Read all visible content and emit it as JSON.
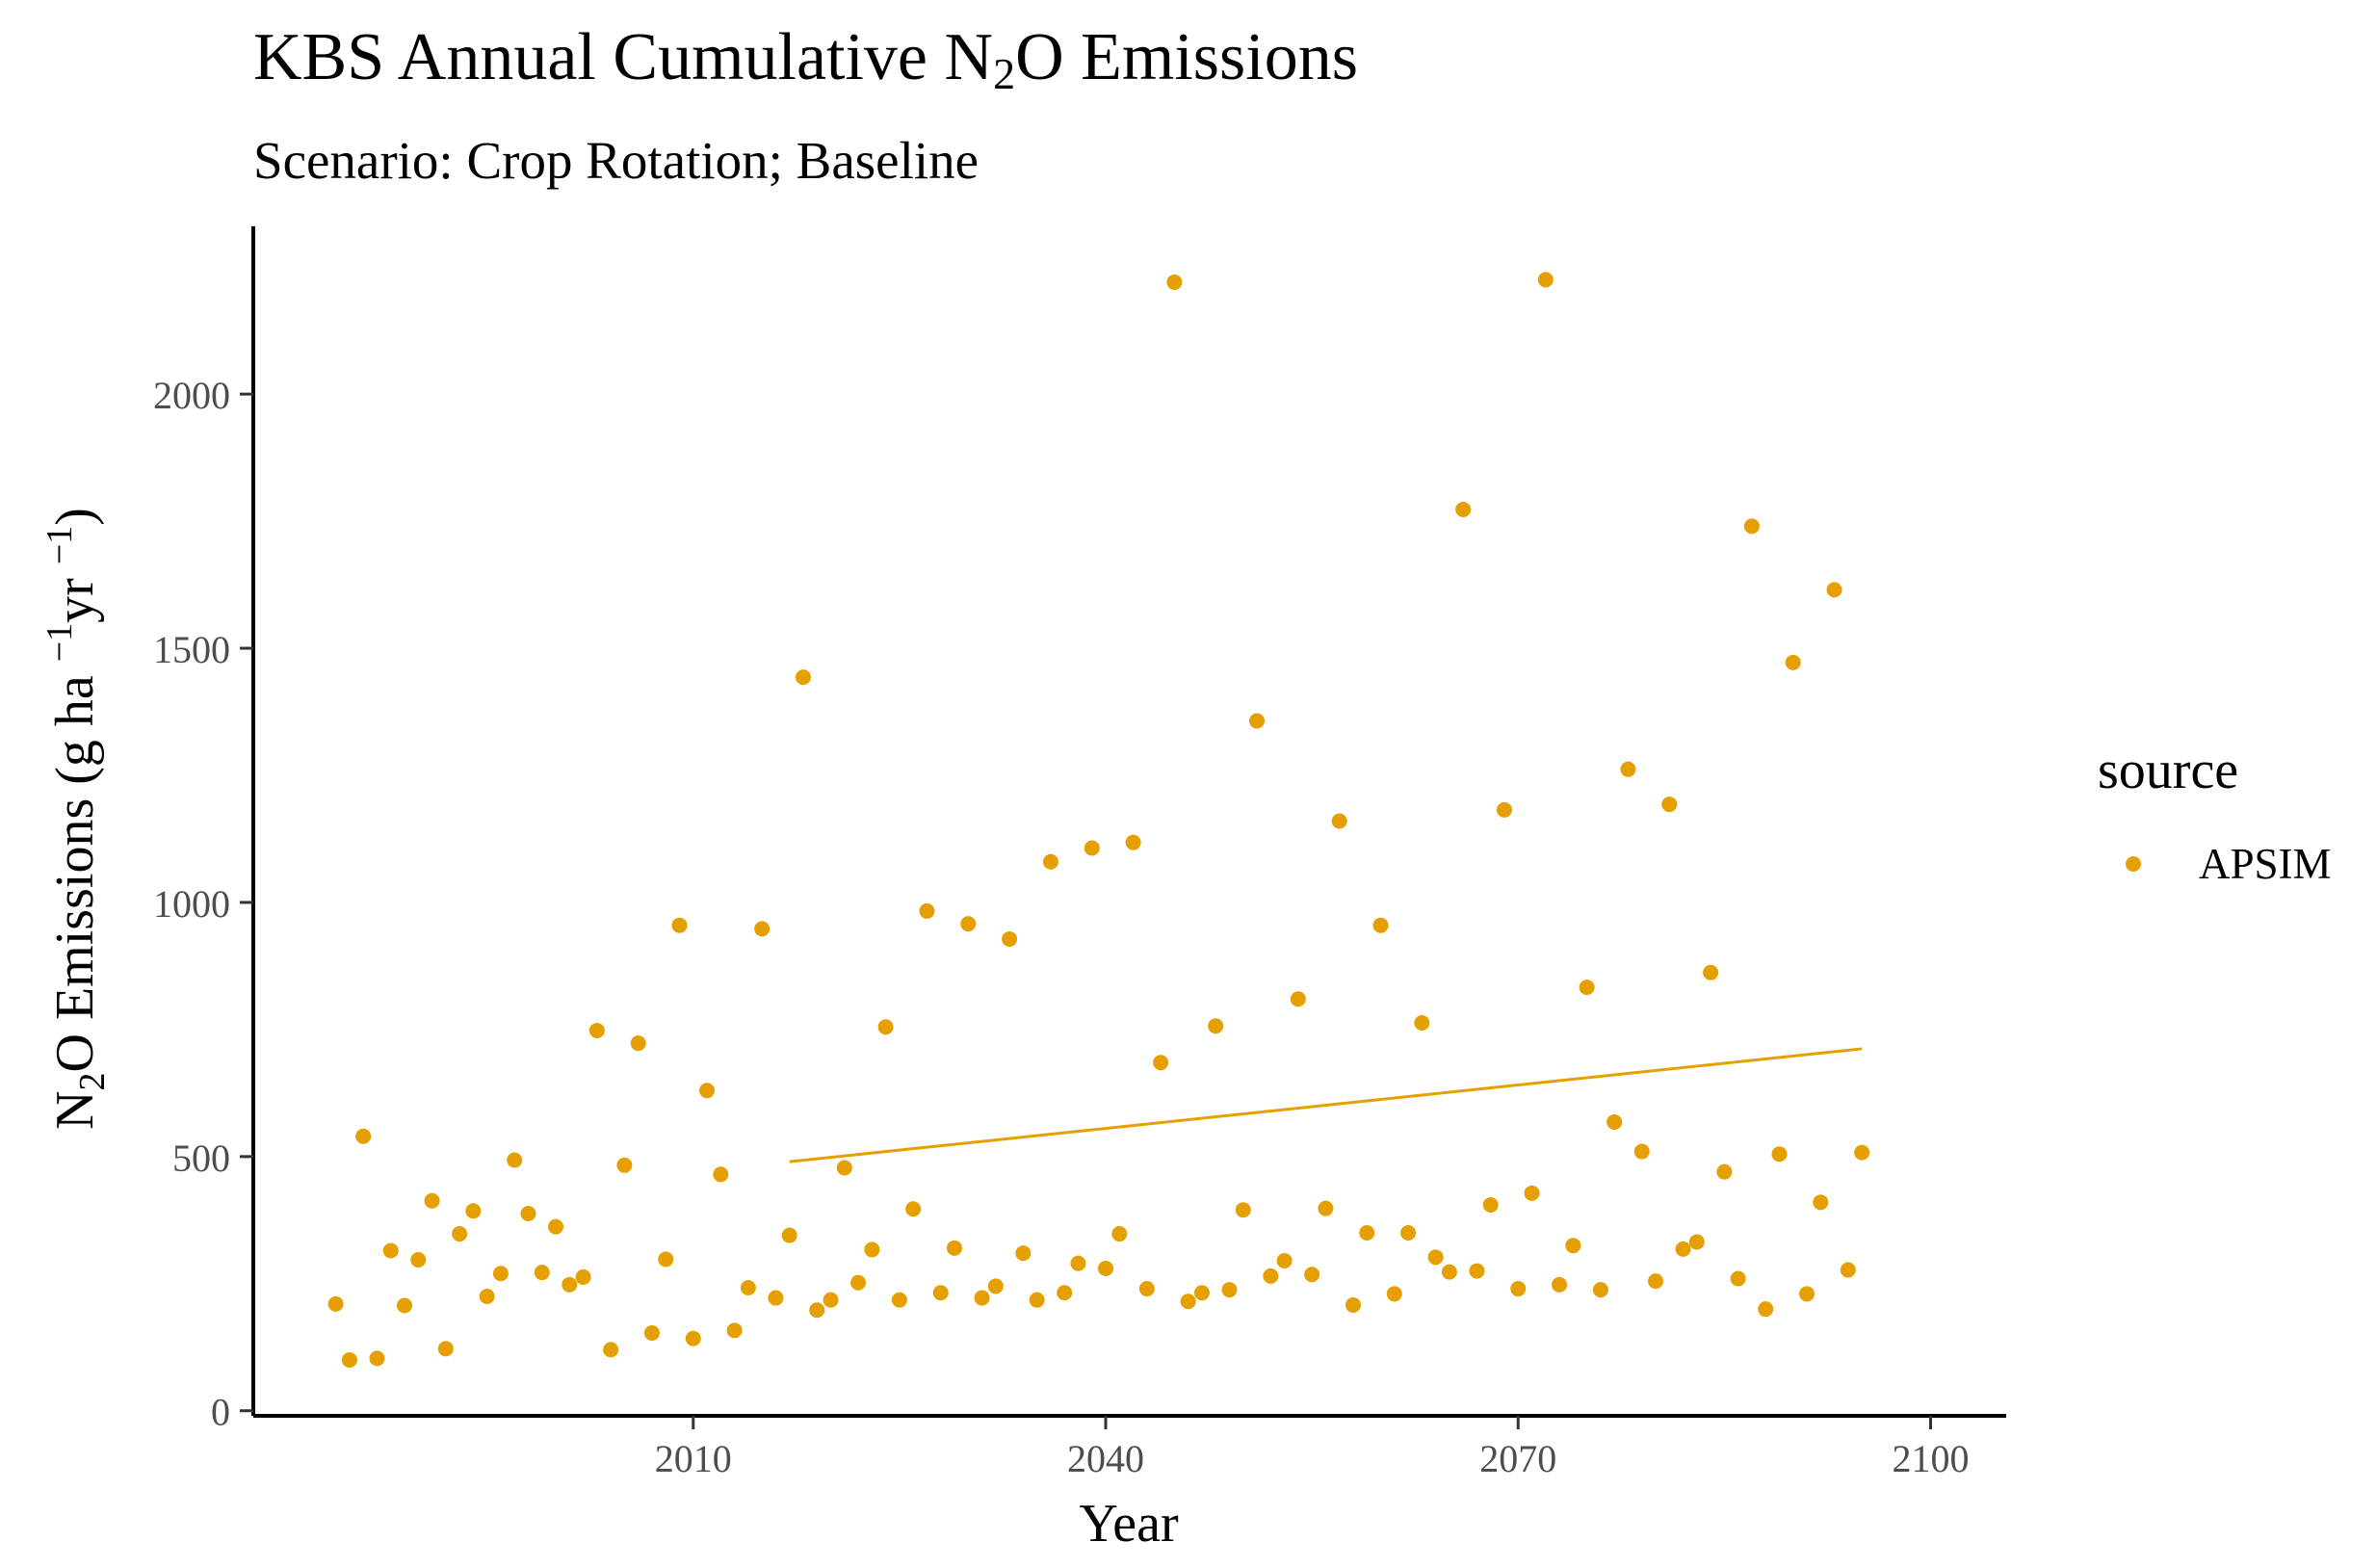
{
  "title": {
    "pre": "KBS Annual Cumulative N",
    "sub": "2",
    "post": "O Emissions"
  },
  "subtitle": "Scenario: Crop Rotation; Baseline",
  "chart_data": {
    "type": "scatter",
    "title": "KBS Annual Cumulative N2O Emissions",
    "subtitle": "Scenario: Crop Rotation; Baseline",
    "xlabel": "Year",
    "ylabel": "N2O Emissions (g ha-1 yr-1)",
    "ylabel_parts": {
      "a": "N",
      "a_sub": "2",
      "b": "O Emissions (g ha ",
      "b_sup": "−1",
      "c": "yr ",
      "c_sup": "−1",
      "d": ")"
    },
    "xlim": [
      1978,
      2105.5
    ],
    "ylim": [
      -10,
      2330
    ],
    "x_ticks": [
      2010,
      2040,
      2070,
      2100
    ],
    "y_ticks": [
      0,
      500,
      1000,
      1500,
      2000
    ],
    "grid": false,
    "legend": {
      "title": "source",
      "position": "right"
    },
    "series": [
      {
        "name": "APSIM",
        "color": "#E69F00",
        "points": [
          [
            1984,
            210
          ],
          [
            1985,
            100
          ],
          [
            1986,
            540
          ],
          [
            1987,
            103
          ],
          [
            1988,
            315
          ],
          [
            1989,
            207
          ],
          [
            1990,
            297
          ],
          [
            1991,
            413
          ],
          [
            1992,
            122
          ],
          [
            1993,
            348
          ],
          [
            1994,
            393
          ],
          [
            1995,
            225
          ],
          [
            1996,
            270
          ],
          [
            1997,
            493
          ],
          [
            1998,
            388
          ],
          [
            1999,
            272
          ],
          [
            2000,
            362
          ],
          [
            2001,
            248
          ],
          [
            2002,
            263
          ],
          [
            2003,
            748
          ],
          [
            2004,
            120
          ],
          [
            2005,
            483
          ],
          [
            2006,
            723
          ],
          [
            2007,
            153
          ],
          [
            2008,
            298
          ],
          [
            2009,
            955
          ],
          [
            2010,
            142
          ],
          [
            2011,
            630
          ],
          [
            2012,
            465
          ],
          [
            2013,
            158
          ],
          [
            2014,
            242
          ],
          [
            2015,
            948
          ],
          [
            2016,
            222
          ],
          [
            2017,
            345
          ],
          [
            2018,
            1443
          ],
          [
            2019,
            198
          ],
          [
            2020,
            218
          ],
          [
            2021,
            478
          ],
          [
            2022,
            252
          ],
          [
            2023,
            317
          ],
          [
            2024,
            755
          ],
          [
            2025,
            218
          ],
          [
            2026,
            397
          ],
          [
            2027,
            983
          ],
          [
            2028,
            232
          ],
          [
            2029,
            320
          ],
          [
            2030,
            958
          ],
          [
            2031,
            222
          ],
          [
            2032,
            245
          ],
          [
            2033,
            928
          ],
          [
            2034,
            310
          ],
          [
            2035,
            218
          ],
          [
            2036,
            1080
          ],
          [
            2037,
            232
          ],
          [
            2038,
            290
          ],
          [
            2039,
            1107
          ],
          [
            2040,
            280
          ],
          [
            2041,
            348
          ],
          [
            2042,
            1118
          ],
          [
            2043,
            240
          ],
          [
            2044,
            685
          ],
          [
            2045,
            2220
          ],
          [
            2046,
            215
          ],
          [
            2047,
            232
          ],
          [
            2048,
            757
          ],
          [
            2049,
            238
          ],
          [
            2050,
            395
          ],
          [
            2051,
            1357
          ],
          [
            2052,
            265
          ],
          [
            2053,
            295
          ],
          [
            2054,
            810
          ],
          [
            2055,
            268
          ],
          [
            2056,
            398
          ],
          [
            2057,
            1160
          ],
          [
            2058,
            208
          ],
          [
            2059,
            350
          ],
          [
            2060,
            955
          ],
          [
            2061,
            230
          ],
          [
            2062,
            350
          ],
          [
            2063,
            763
          ],
          [
            2064,
            302
          ],
          [
            2065,
            273
          ],
          [
            2066,
            1773
          ],
          [
            2067,
            275
          ],
          [
            2068,
            405
          ],
          [
            2069,
            1182
          ],
          [
            2070,
            240
          ],
          [
            2071,
            428
          ],
          [
            2072,
            2225
          ],
          [
            2073,
            248
          ],
          [
            2074,
            325
          ],
          [
            2075,
            833
          ],
          [
            2076,
            238
          ],
          [
            2077,
            568
          ],
          [
            2078,
            1262
          ],
          [
            2079,
            510
          ],
          [
            2080,
            255
          ],
          [
            2081,
            1193
          ],
          [
            2082,
            318
          ],
          [
            2083,
            332
          ],
          [
            2084,
            862
          ],
          [
            2085,
            470
          ],
          [
            2086,
            260
          ],
          [
            2087,
            1740
          ],
          [
            2088,
            200
          ],
          [
            2089,
            505
          ],
          [
            2090,
            1472
          ],
          [
            2091,
            230
          ],
          [
            2092,
            410
          ],
          [
            2093,
            1615
          ],
          [
            2094,
            277
          ],
          [
            2095,
            508
          ]
        ],
        "trend": {
          "x": [
            2017,
            2095
          ],
          "y": [
            490,
            712
          ]
        }
      }
    ]
  }
}
